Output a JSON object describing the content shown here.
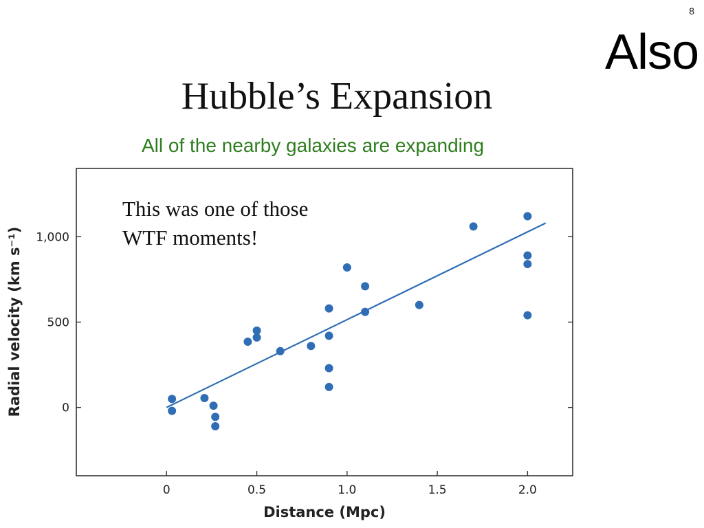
{
  "slide": {
    "number": "8",
    "corner_word": "Also",
    "title": "Hubble’s Expansion",
    "subtitle": "All of the nearby galaxies are expanding"
  },
  "colors": {
    "accent": "#2f6db5",
    "subtitle": "#2e7d1e"
  },
  "chart_data": {
    "type": "scatter",
    "xlabel": "Distance (Mpc)",
    "ylabel": "Radial velocity (km s⁻¹)",
    "annotation": [
      "This was one of those",
      "WTF moments!"
    ],
    "xlim": [
      -0.5,
      2.25
    ],
    "ylim": [
      -400,
      1400
    ],
    "xticks": [
      {
        "value": 0,
        "label": "0"
      },
      {
        "value": 0.5,
        "label": "0.5"
      },
      {
        "value": 1.0,
        "label": "1.0"
      },
      {
        "value": 1.5,
        "label": "1.5"
      },
      {
        "value": 2.0,
        "label": "2.0"
      }
    ],
    "yticks": [
      {
        "value": 0,
        "label": "0"
      },
      {
        "value": 500,
        "label": "500"
      },
      {
        "value": 1000,
        "label": "1,000"
      }
    ],
    "grid": false,
    "points": [
      {
        "x": 0.03,
        "y": 50
      },
      {
        "x": 0.03,
        "y": -20
      },
      {
        "x": 0.21,
        "y": 55
      },
      {
        "x": 0.26,
        "y": 10
      },
      {
        "x": 0.27,
        "y": -55
      },
      {
        "x": 0.27,
        "y": -110
      },
      {
        "x": 0.45,
        "y": 385
      },
      {
        "x": 0.5,
        "y": 450
      },
      {
        "x": 0.5,
        "y": 410
      },
      {
        "x": 0.63,
        "y": 330
      },
      {
        "x": 0.8,
        "y": 360
      },
      {
        "x": 0.9,
        "y": 580
      },
      {
        "x": 0.9,
        "y": 420
      },
      {
        "x": 0.9,
        "y": 230
      },
      {
        "x": 0.9,
        "y": 120
      },
      {
        "x": 1.0,
        "y": 820
      },
      {
        "x": 1.1,
        "y": 710
      },
      {
        "x": 1.1,
        "y": 560
      },
      {
        "x": 1.4,
        "y": 600
      },
      {
        "x": 1.7,
        "y": 1060
      },
      {
        "x": 2.0,
        "y": 1120
      },
      {
        "x": 2.0,
        "y": 890
      },
      {
        "x": 2.0,
        "y": 840
      },
      {
        "x": 2.0,
        "y": 540
      }
    ],
    "fit_line": {
      "x": [
        0,
        2.1
      ],
      "y": [
        0,
        1080
      ]
    }
  }
}
